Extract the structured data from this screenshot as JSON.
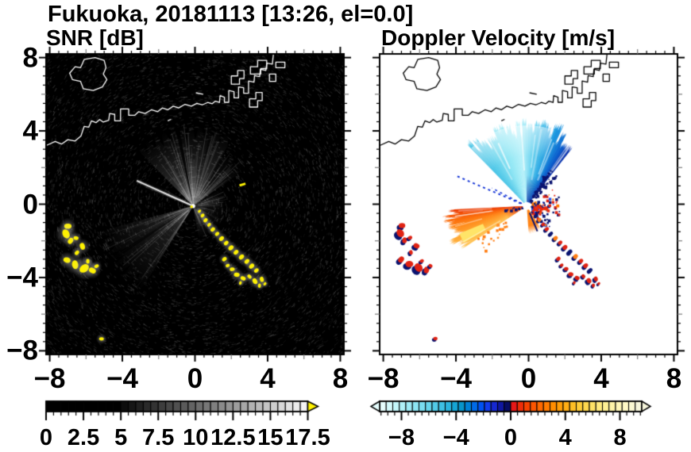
{
  "figure": {
    "title": "Fukuoka, 20181113 [13:26, el=0.0]"
  },
  "panels": {
    "snr": {
      "title": "SNR [dB]",
      "x_tick_labels": [
        "−8",
        "−4",
        "0",
        "4",
        "8"
      ],
      "y_tick_labels": [
        "8",
        "4",
        "0",
        "−4",
        "−8"
      ],
      "colorbar": {
        "tick_labels": [
          "0",
          "2.5",
          "5",
          "7.5",
          "10",
          "12.5",
          "15",
          "17.5"
        ],
        "units": "dB",
        "min": 0,
        "max": 17.5,
        "black_below": 5,
        "over_range_color": "#FFF200",
        "style": "grayscale black-to-white, yellow over-range arrow"
      }
    },
    "velocity": {
      "title": "Doppler Velocity [m/s]",
      "x_tick_labels": [
        "−8",
        "−4",
        "0",
        "4",
        "8"
      ],
      "colorbar": {
        "tick_labels": [
          "−8",
          "−4",
          "0",
          "4",
          "8"
        ],
        "units": "m/s",
        "min": -10,
        "max": 10,
        "segment_colors": [
          "#E6FEFE",
          "#D4FAFC",
          "#C2F6FA",
          "#B0F1F8",
          "#9EEBF6",
          "#8CE5F3",
          "#79DDF0",
          "#66D5EC",
          "#52CBE8",
          "#3EC0E3",
          "#2AB3DD",
          "#16A5D5",
          "#0895CB",
          "#0081D6",
          "#006AE8",
          "#0052F2",
          "#123CEC",
          "#1628D0",
          "#0F17A0",
          "#070C62",
          "#E81818",
          "#EE2D08",
          "#F64200",
          "#FC5600",
          "#FF6900",
          "#FF7B00",
          "#FF8D00",
          "#FF9E08",
          "#FFAE14",
          "#FFBE24",
          "#FFCC38",
          "#FFD84E",
          "#FFE266",
          "#FFEA7E",
          "#FFF094",
          "#FFF4A8",
          "#FFF7B8",
          "#FFF9C6",
          "#FBF8D2",
          "#F7F6DC"
        ]
      }
    }
  },
  "chart_data": {
    "type": "heatmap",
    "title": "Fukuoka, 20181113 [13:26, el=0.0]",
    "station": "Fukuoka",
    "date": "20181113",
    "time": "13:26",
    "elevation_deg": 0.0,
    "panel_titles": [
      "SNR [dB]",
      "Doppler Velocity [m/s]"
    ],
    "xlim": [
      -8.2,
      8.2
    ],
    "ylim": [
      -8.2,
      8.2
    ],
    "x_ticks": [
      -8,
      -4,
      0,
      4,
      8
    ],
    "y_ticks": [
      8,
      4,
      0,
      -4,
      -8
    ],
    "minor_tick_step": 0.5,
    "radar_center": [
      -0.1,
      -0.1
    ],
    "snr_colorbar": {
      "tick_values": [
        0,
        2.5,
        5,
        7.5,
        10,
        12.5,
        15,
        17.5
      ],
      "range": [
        0,
        17.5
      ]
    },
    "velocity_colorbar": {
      "tick_values": [
        -8,
        -4,
        0,
        4,
        8
      ],
      "range": [
        -10,
        10
      ]
    },
    "features": {
      "coastline": {
        "stroke_snr": "#FFFFFF",
        "stroke_vel": "#000000",
        "main": [
          [
            -8.2,
            3.2
          ],
          [
            -7.7,
            3.42
          ],
          [
            -7.35,
            3.28
          ],
          [
            -7.0,
            3.52
          ],
          [
            -6.6,
            3.45
          ],
          [
            -6.28,
            3.72
          ],
          [
            -6.1,
            4.25
          ],
          [
            -5.85,
            4.2
          ],
          [
            -5.7,
            4.55
          ],
          [
            -5.45,
            4.45
          ],
          [
            -5.25,
            4.62
          ],
          [
            -5.05,
            4.48
          ],
          [
            -4.75,
            4.58
          ],
          [
            -4.7,
            4.95
          ],
          [
            -4.42,
            4.9
          ],
          [
            -4.42,
            4.55
          ],
          [
            -4.1,
            4.55
          ],
          [
            -4.1,
            5.2
          ],
          [
            -3.65,
            5.2
          ],
          [
            -3.65,
            4.85
          ],
          [
            -3.32,
            4.85
          ],
          [
            -3.1,
            5.05
          ],
          [
            -2.75,
            4.95
          ],
          [
            -2.4,
            5.15
          ],
          [
            -2.05,
            5.05
          ],
          [
            -1.8,
            5.25
          ],
          [
            -1.5,
            5.15
          ],
          [
            -1.2,
            5.35
          ],
          [
            -0.9,
            5.25
          ],
          [
            -0.55,
            5.45
          ],
          [
            -0.2,
            5.35
          ],
          [
            0.1,
            5.5
          ],
          [
            0.4,
            5.42
          ],
          [
            0.7,
            5.55
          ],
          [
            0.95,
            5.48
          ],
          [
            1.12,
            5.62
          ],
          [
            1.35,
            5.55
          ],
          [
            1.38,
            5.92
          ],
          [
            1.62,
            5.84
          ],
          [
            1.62,
            5.56
          ],
          [
            1.86,
            5.56
          ],
          [
            1.86,
            6.2
          ],
          [
            2.15,
            6.14
          ],
          [
            2.15,
            5.8
          ],
          [
            2.4,
            5.8
          ],
          [
            2.4,
            6.4
          ],
          [
            2.68,
            6.36
          ],
          [
            2.68,
            6.05
          ],
          [
            2.95,
            6.05
          ],
          [
            2.95,
            6.72
          ],
          [
            3.25,
            6.66
          ],
          [
            3.28,
            7.02
          ],
          [
            3.56,
            6.96
          ],
          [
            3.6,
            7.36
          ],
          [
            3.9,
            7.3
          ],
          [
            3.96,
            7.7
          ],
          [
            4.26,
            7.64
          ],
          [
            4.32,
            8.2
          ]
        ],
        "island": [
          [
            -6.1,
            7.9
          ],
          [
            -5.5,
            8.0
          ],
          [
            -5.0,
            7.85
          ],
          [
            -4.9,
            7.45
          ],
          [
            -5.05,
            7.1
          ],
          [
            -4.85,
            6.8
          ],
          [
            -5.1,
            6.4
          ],
          [
            -5.6,
            6.2
          ],
          [
            -6.15,
            6.3
          ],
          [
            -6.3,
            6.7
          ],
          [
            -6.75,
            6.8
          ],
          [
            -6.9,
            7.15
          ],
          [
            -6.6,
            7.5
          ],
          [
            -6.3,
            7.45
          ]
        ],
        "blocks": [
          [
            [
              3.0,
              5.3
            ],
            [
              3.0,
              5.75
            ],
            [
              3.35,
              5.75
            ],
            [
              3.35,
              6.1
            ],
            [
              3.7,
              6.1
            ],
            [
              3.7,
              5.65
            ],
            [
              3.45,
              5.65
            ],
            [
              3.45,
              5.3
            ]
          ],
          [
            [
              2.0,
              6.55
            ],
            [
              2.0,
              7.0
            ],
            [
              2.35,
              7.0
            ],
            [
              2.35,
              7.3
            ],
            [
              2.7,
              7.3
            ],
            [
              2.7,
              6.85
            ],
            [
              2.45,
              6.85
            ],
            [
              2.45,
              6.55
            ]
          ],
          [
            [
              3.05,
              7.1
            ],
            [
              3.05,
              7.5
            ],
            [
              3.45,
              7.5
            ],
            [
              3.45,
              7.85
            ],
            [
              3.95,
              7.85
            ],
            [
              3.95,
              7.4
            ],
            [
              3.62,
              7.4
            ],
            [
              3.62,
              7.1
            ]
          ],
          [
            [
              4.1,
              6.7
            ],
            [
              4.1,
              7.1
            ],
            [
              4.45,
              7.1
            ],
            [
              4.45,
              6.7
            ]
          ],
          [
            [
              4.45,
              7.45
            ],
            [
              4.45,
              7.75
            ],
            [
              4.95,
              7.75
            ],
            [
              4.95,
              7.45
            ]
          ]
        ],
        "islets": [
          [
            [
              0.05,
              6.08
            ],
            [
              0.45,
              6.0
            ]
          ],
          [
            [
              -1.5,
              4.55
            ],
            [
              -1.32,
              4.63
            ]
          ]
        ]
      },
      "snr": {
        "background": "#000000",
        "fans": [
          {
            "az": [
              -45,
              30
            ],
            "r": 4.45,
            "alpha": 0.8,
            "streaks": 70
          },
          {
            "az": [
              30,
              55
            ],
            "r": 3.6,
            "alpha": 0.4,
            "streaks": 26
          },
          {
            "az": [
              212,
              255
            ],
            "r": 5.6,
            "alpha": 0.52,
            "streaks": 40
          },
          {
            "az": [
              58,
              135
            ],
            "r": 1.9,
            "alpha": 0.3,
            "streaks": 30
          },
          {
            "az": [
              136,
              170
            ],
            "r": 1.9,
            "alpha": 0.5,
            "streaks": 14
          },
          {
            "az": [
              288,
              300
            ],
            "r": 3.1,
            "alpha": 0.16,
            "streaks": 8
          }
        ],
        "shadow_wedges": [
          {
            "az": [
              -13,
              -10
            ],
            "r": 4.5,
            "alpha": 0.75
          },
          {
            "az": [
              13,
              15.5
            ],
            "r": 4.5,
            "alpha": 0.5
          },
          {
            "az": [
              236,
              238.5
            ],
            "r": 5.6,
            "alpha": 0.6
          }
        ],
        "ray": {
          "az": 294,
          "r": 3.4
        },
        "yellow": "#FFF200",
        "yellow_dash": [
          [
            2.45,
            1.02
          ],
          [
            2.78,
            1.12
          ]
        ]
      },
      "velocity": {
        "background": "#FFFFFF",
        "cyan_fan": {
          "az": [
            -44,
            38
          ],
          "r": 4.4,
          "stops": [
            [
              -44,
              "#49C4E6"
            ],
            [
              -22,
              "#8FE6F4"
            ],
            [
              -5,
              "#B9F2FA"
            ],
            [
              8,
              "#62CFEE"
            ],
            [
              22,
              "#1E9BE0"
            ],
            [
              32,
              "#0C5CCC"
            ],
            [
              38,
              "#0A2CA8"
            ]
          ]
        },
        "orange_fan": {
          "az": [
            237,
            267
          ],
          "r": 4.25,
          "stops": [
            [
              237,
              "#FFC558"
            ],
            [
              246,
              "#FFA834"
            ],
            [
              254,
              "#FF8C1C"
            ],
            [
              260,
              "#FB6A0A"
            ],
            [
              265,
              "#F24A05"
            ],
            [
              267,
              "#EA3A04"
            ]
          ],
          "core_color": "#E8340C",
          "yellow_blob": {
            "az": [
              240,
              248
            ],
            "r": [
              2.6,
              4.0
            ],
            "color": "#FFE468"
          }
        },
        "se_wedge": {
          "az": [
            148,
            176
          ],
          "r": 1.55,
          "color": "#FF8518"
        },
        "ray": {
          "az": 293,
          "r": 4.3,
          "color": "#1535D6"
        },
        "speck_groups": [
          {
            "az": [
              26,
              44
            ],
            "r": [
              0.3,
              2.4
            ],
            "n": 70,
            "colors": [
              "#0A1470"
            ]
          },
          {
            "az": [
              55,
              140
            ],
            "r": [
              0.2,
              1.8
            ],
            "n": 95,
            "colors": [
              "#0A1470",
              "#0A1470",
              "#E02313",
              "#E02313",
              "#2A52E8",
              "#FF7A00"
            ]
          },
          {
            "az": [
              84,
              112
            ],
            "r": [
              0.35,
              1.15
            ],
            "n": 26,
            "colors": [
              "#E8290F"
            ]
          },
          {
            "az": [
              224,
              240
            ],
            "r": [
              1.3,
              3.4
            ],
            "n": 22,
            "colors": [
              "#FF9028",
              "#FF7D12"
            ]
          },
          {
            "az": [
              258,
              266
            ],
            "r": [
              0.3,
              1.4
            ],
            "n": 12,
            "colors": [
              "#0A1470"
            ]
          }
        ],
        "center_hole_r": 0.22
      },
      "echoes": {
        "left_cluster": [
          [
            -7.0,
            -1.2,
            0.2
          ],
          [
            -7.1,
            -1.62,
            0.26
          ],
          [
            -6.85,
            -2.0,
            0.18
          ],
          [
            -6.55,
            -1.85,
            0.14
          ],
          [
            -6.2,
            -2.3,
            0.19
          ],
          [
            -6.5,
            -2.65,
            0.14
          ],
          [
            -7.05,
            -3.05,
            0.2
          ],
          [
            -6.6,
            -3.3,
            0.24
          ],
          [
            -6.1,
            -3.5,
            0.28
          ],
          [
            -5.65,
            -3.62,
            0.2
          ],
          [
            -5.9,
            -3.12,
            0.13
          ],
          [
            -5.42,
            -3.38,
            0.13
          ]
        ],
        "se_arc": [
          [
            0.25,
            -0.38,
            0.1
          ],
          [
            0.42,
            -0.62,
            0.12
          ],
          [
            0.58,
            -0.88,
            0.13
          ],
          [
            0.78,
            -1.12,
            0.12
          ],
          [
            0.98,
            -1.38,
            0.14
          ],
          [
            1.22,
            -1.62,
            0.13
          ],
          [
            1.46,
            -1.88,
            0.15
          ],
          [
            1.72,
            -2.12,
            0.14
          ],
          [
            1.98,
            -2.38,
            0.16
          ],
          [
            2.26,
            -2.62,
            0.15
          ],
          [
            2.56,
            -2.88,
            0.16
          ],
          [
            2.86,
            -3.12,
            0.15
          ],
          [
            3.12,
            -3.38,
            0.16
          ],
          [
            3.38,
            -3.62,
            0.14
          ]
        ],
        "lr_cluster": [
          [
            1.62,
            -3.0,
            0.14
          ],
          [
            1.8,
            -3.35,
            0.12
          ],
          [
            2.05,
            -3.55,
            0.14
          ],
          [
            2.3,
            -3.85,
            0.16
          ],
          [
            2.65,
            -4.05,
            0.15
          ],
          [
            3.0,
            -3.95,
            0.13
          ],
          [
            3.3,
            -4.2,
            0.17
          ],
          [
            3.68,
            -4.1,
            0.15
          ],
          [
            3.55,
            -4.45,
            0.12
          ],
          [
            2.5,
            -4.3,
            0.1
          ],
          [
            3.85,
            -4.35,
            0.1
          ]
        ],
        "dot": [
          [
            -5.15,
            -7.35,
            0.13
          ]
        ]
      }
    }
  }
}
